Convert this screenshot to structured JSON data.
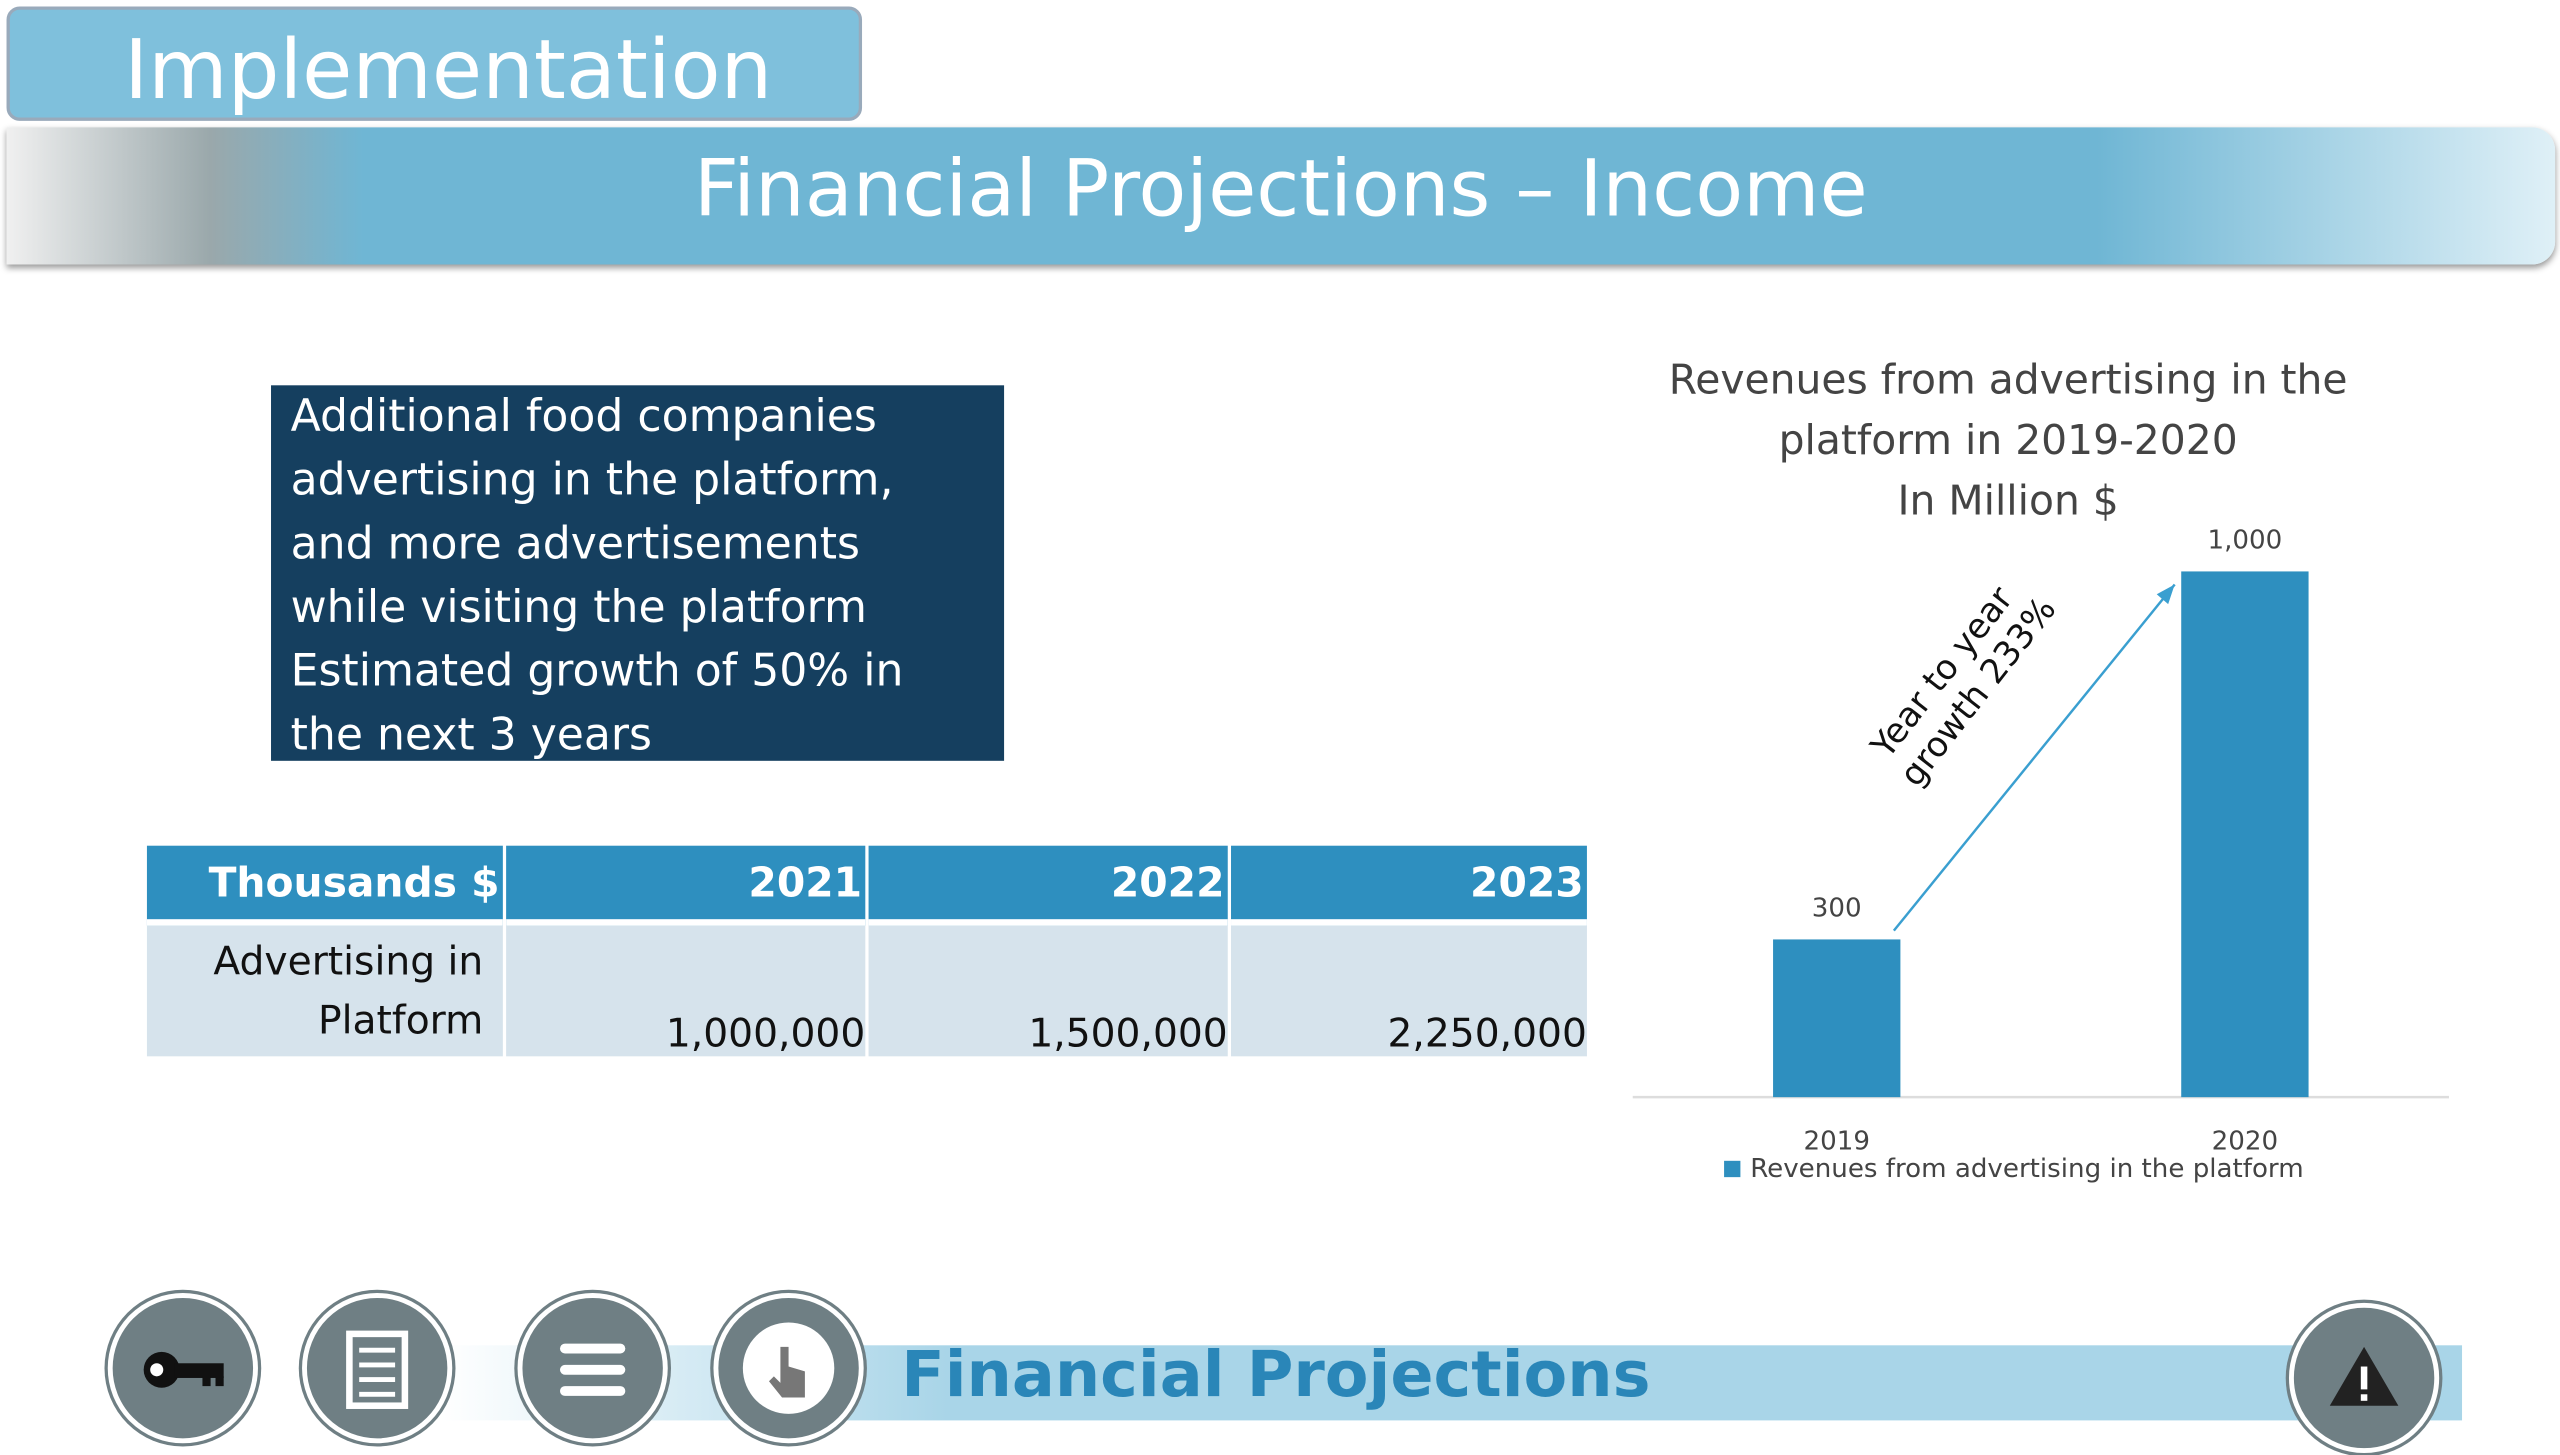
{
  "header": {
    "section": "Implementation",
    "title": "Financial Projections – Income"
  },
  "textbox": {
    "paragraphs": [
      "Additional food companies advertising in the platform, and more advertisements while visiting the platform",
      "Estimated growth of 50% in the next 3 years"
    ]
  },
  "table": {
    "header": [
      "Thousands $",
      "2021",
      "2022",
      "2023"
    ],
    "rows": [
      [
        "Advertising in Platform",
        "1,000,000",
        "1,500,000",
        "2,250,000"
      ]
    ]
  },
  "chart_data": {
    "type": "bar",
    "title": "Revenues from advertising in the platform in 2019-2020",
    "subtitle": "In Million $",
    "categories": [
      "2019",
      "2020"
    ],
    "series": [
      {
        "name": "Revenues from advertising in the platform",
        "color": "#2e8fbf",
        "values": [
          300,
          1000
        ],
        "value_labels": [
          "300",
          "1,000"
        ]
      }
    ],
    "annotations": [
      "Year to year",
      "growth 233%"
    ]
  },
  "footer": {
    "title": "Financial Projections"
  }
}
